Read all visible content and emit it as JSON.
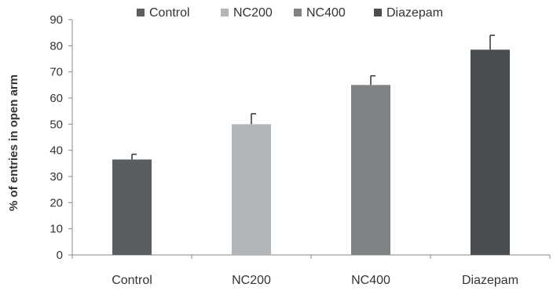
{
  "chart_data": {
    "type": "bar",
    "categories": [
      "Control",
      "NC200",
      "NC400",
      "Diazepam"
    ],
    "values": [
      36.5,
      50,
      65,
      78.5
    ],
    "error": [
      2,
      4,
      3.5,
      5.5
    ],
    "colors": [
      "#5b5e60",
      "#b3b6b8",
      "#7f8283",
      "#4a4d4f"
    ],
    "legend": [
      "Control",
      "NC200",
      "NC400",
      "Diazepam"
    ],
    "legend_position": "top",
    "ylabel": "% of entries in open arm",
    "xlabel": "",
    "ylim": [
      0,
      90
    ],
    "yticks": [
      0,
      10,
      20,
      30,
      40,
      50,
      60,
      70,
      80,
      90
    ],
    "grid": false
  }
}
